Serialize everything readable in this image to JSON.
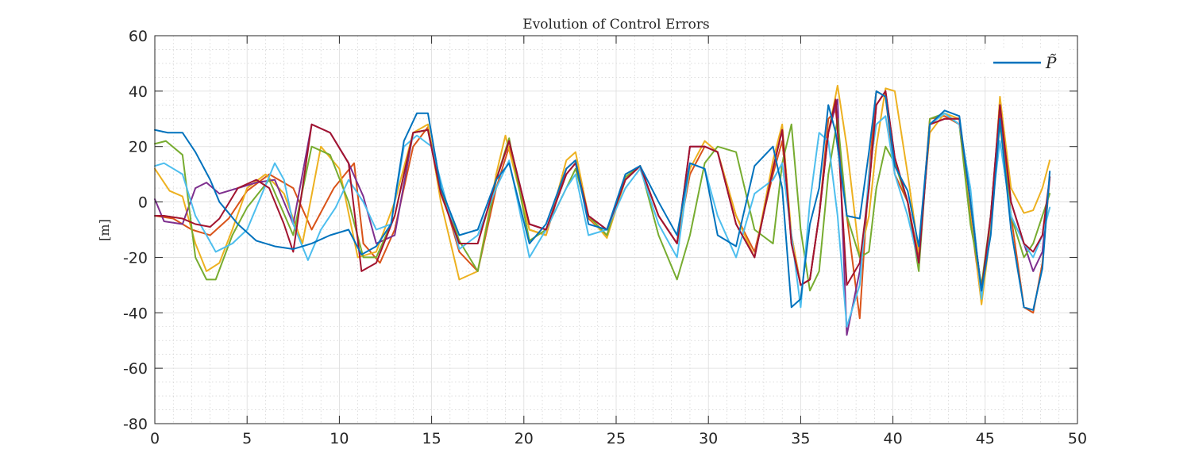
{
  "chart_data": {
    "type": "line",
    "title": "Evolution of Control Errors",
    "xlabel": "",
    "ylabel": "[m]",
    "xlim": [
      0,
      50
    ],
    "ylim": [
      -80,
      60
    ],
    "xticks": [
      "0",
      "5",
      "10",
      "15",
      "20",
      "25",
      "30",
      "35",
      "40",
      "45",
      "50"
    ],
    "yticks": [
      "60",
      "40",
      "20",
      "0",
      "-20",
      "-40",
      "-60",
      "-80"
    ],
    "grid": true,
    "minor_grid": true,
    "legend": {
      "placement": "top-right",
      "entries": [
        {
          "label": "P̃",
          "color": "#0072BD"
        }
      ]
    },
    "series": [
      {
        "color": "#0072BD",
        "x": [
          0,
          0.7,
          1.5,
          2.2,
          3,
          3.5,
          4.5,
          5.5,
          6.5,
          7.5,
          8.5,
          9.5,
          10.5,
          11.2,
          12,
          12.8,
          13.5,
          14.2,
          14.8,
          15.5,
          16.5,
          17.5,
          18.5,
          19.2,
          20.3,
          21.2,
          22.3,
          22.8,
          23.5,
          24.5,
          25.5,
          26.3,
          27.3,
          28.3,
          29,
          29.8,
          30.5,
          31.5,
          32.5,
          33.5,
          34,
          34.5,
          35,
          35.5,
          36,
          36.5,
          36.9,
          37.5,
          38.2,
          38.7,
          39.1,
          39.6,
          40.1,
          40.8,
          41.4,
          42,
          42.8,
          43.6,
          44.2,
          44.8,
          45.3,
          45.8,
          46.4,
          47.1,
          47.6,
          48.1,
          48.5
        ],
        "y": [
          26,
          25,
          25,
          18,
          8,
          0,
          -8,
          -14,
          -16,
          -17,
          -15,
          -12,
          -10,
          -19,
          -16,
          -8,
          22,
          32,
          32,
          5,
          -12,
          -10,
          8,
          14,
          -15,
          -8,
          12,
          15,
          -8,
          -10,
          10,
          13,
          0,
          -12,
          14,
          12,
          -12,
          -16,
          13,
          20,
          5,
          -38,
          -35,
          -8,
          5,
          35,
          25,
          -5,
          -6,
          18,
          40,
          38,
          13,
          4,
          -16,
          28,
          33,
          31,
          0,
          -32,
          -12,
          30,
          -10,
          -38,
          -39,
          -24,
          11
        ]
      },
      {
        "color": "#D95319",
        "x": [
          0,
          1,
          2,
          3,
          4,
          5,
          6.2,
          7.5,
          8.5,
          9.7,
          10.8,
          11.3,
          12.2,
          13,
          14,
          14.8,
          15.5,
          16.5,
          17.5,
          18.5,
          19.2,
          20.3,
          21.2,
          22.3,
          22.8,
          23.5,
          24.5,
          25.5,
          26.3,
          27.3,
          28.3,
          29,
          29.8,
          30.5,
          31.5,
          32.5,
          33.5,
          34,
          34.5,
          35,
          35.5,
          36,
          36.5,
          36.9,
          37.5,
          38.2,
          38.7,
          39.1,
          39.6,
          40.1,
          40.8,
          41.4,
          42,
          42.8,
          43.6,
          44.2,
          44.8,
          45.3,
          45.8,
          46.4,
          47.1,
          47.6,
          48.1,
          48.5
        ],
        "y": [
          -5,
          -6,
          -10,
          -12,
          -6,
          4,
          10,
          5,
          -10,
          5,
          14,
          -15,
          -22,
          -10,
          20,
          27,
          5,
          -18,
          -25,
          5,
          20,
          -10,
          -12,
          12,
          15,
          -6,
          -12,
          8,
          13,
          -5,
          -15,
          10,
          20,
          18,
          -5,
          -18,
          10,
          22,
          -12,
          -30,
          -28,
          -5,
          30,
          33,
          -5,
          -42,
          10,
          40,
          38,
          10,
          0,
          -20,
          30,
          31,
          28,
          -5,
          -36,
          -5,
          32,
          -5,
          -38,
          -40,
          -22,
          9
        ]
      },
      {
        "color": "#EDB120",
        "x": [
          0,
          0.8,
          1.5,
          2.2,
          2.8,
          3.5,
          4.2,
          5,
          6,
          7,
          8,
          9,
          10,
          11,
          12,
          13,
          14,
          14.8,
          15.5,
          16.5,
          17.5,
          18.5,
          19,
          20.3,
          21.2,
          22.3,
          22.8,
          23.5,
          24.5,
          25.5,
          26.3,
          27.3,
          28.3,
          29,
          29.8,
          30.5,
          31.5,
          32.5,
          33.5,
          34,
          34.5,
          35,
          35.5,
          36,
          36.5,
          37,
          37.5,
          38.2,
          38.7,
          39.1,
          39.6,
          40.1,
          40.8,
          41.4,
          42,
          42.8,
          43.6,
          44.2,
          44.8,
          45.3,
          45.8,
          46.4,
          47.1,
          47.6,
          48.1,
          48.5
        ],
        "y": [
          12,
          4,
          2,
          -15,
          -25,
          -22,
          -10,
          5,
          10,
          3,
          -15,
          20,
          12,
          -20,
          -18,
          0,
          25,
          28,
          0,
          -28,
          -25,
          10,
          24,
          -10,
          -12,
          15,
          18,
          -5,
          -13,
          8,
          13,
          -5,
          -15,
          12,
          22,
          18,
          -5,
          -20,
          15,
          28,
          -12,
          -30,
          -28,
          -5,
          25,
          42,
          20,
          -20,
          -5,
          20,
          41,
          40,
          10,
          -18,
          25,
          32,
          30,
          -2,
          -37,
          -10,
          38,
          5,
          -4,
          -3,
          5,
          15
        ]
      },
      {
        "color": "#7E2F8E",
        "x": [
          0,
          0.5,
          1.5,
          2.2,
          2.8,
          3.5,
          4.5,
          5.5,
          6.5,
          7.5,
          8.5,
          9.5,
          10.5,
          11.3,
          12,
          13,
          14,
          14.8,
          15.5,
          16.5,
          17.5,
          18.5,
          19.2,
          20.3,
          21.2,
          22.3,
          22.8,
          23.5,
          24.5,
          25.5,
          26.3,
          27.3,
          28.3,
          29,
          29.8,
          30.5,
          31.5,
          32.5,
          33.5,
          34,
          34.5,
          35,
          35.5,
          36,
          36.5,
          37,
          37.5,
          38.2,
          38.7,
          39.1,
          39.6,
          40.1,
          40.8,
          41.4,
          42,
          42.8,
          43.6,
          44.2,
          44.8,
          45.3,
          45.8,
          46.4,
          47.1,
          47.6,
          48.1,
          48.5
        ],
        "y": [
          1,
          -7,
          -8,
          5,
          7,
          3,
          5,
          7,
          8,
          -8,
          28,
          25,
          14,
          2,
          -15,
          -12,
          25,
          26,
          3,
          -15,
          -15,
          8,
          22,
          -8,
          -10,
          10,
          14,
          -5,
          -10,
          8,
          13,
          -5,
          -15,
          20,
          20,
          18,
          -8,
          -20,
          12,
          26,
          -15,
          -30,
          -28,
          -5,
          25,
          37,
          -48,
          -25,
          5,
          35,
          40,
          16,
          0,
          -22,
          28,
          30,
          30,
          0,
          -32,
          -5,
          35,
          0,
          -15,
          -25,
          -18,
          9
        ]
      },
      {
        "color": "#77AC30",
        "x": [
          0,
          0.6,
          1.5,
          2.2,
          2.8,
          3.3,
          4.2,
          5,
          6.2,
          7.5,
          8.5,
          9.5,
          10.5,
          11.3,
          12,
          13,
          14,
          14.8,
          15.5,
          16.5,
          17.5,
          18.5,
          19.2,
          20.3,
          21.2,
          22.3,
          22.8,
          23.5,
          24.5,
          25.5,
          26.3,
          27.3,
          28.3,
          29,
          29.8,
          30.5,
          31.5,
          32.5,
          33.5,
          34,
          34.5,
          35,
          35.5,
          36,
          36.5,
          37,
          37.5,
          38.2,
          38.7,
          39.1,
          39.6,
          40.1,
          40.8,
          41.4,
          42,
          42.8,
          43.6,
          44.2,
          44.8,
          45.3,
          45.8,
          46.4,
          47.1,
          47.6,
          48.1,
          48.5
        ],
        "y": [
          21,
          22,
          17,
          -20,
          -28,
          -28,
          -12,
          -2,
          8,
          -12,
          20,
          17,
          0,
          -20,
          -20,
          -5,
          25,
          26,
          5,
          -14,
          -25,
          8,
          23,
          -14,
          -10,
          5,
          12,
          -5,
          -12,
          9,
          13,
          -12,
          -28,
          -12,
          14,
          20,
          18,
          -10,
          -15,
          14,
          28,
          -10,
          -32,
          -25,
          10,
          30,
          -5,
          -20,
          -18,
          5,
          20,
          14,
          0,
          -25,
          30,
          32,
          28,
          -8,
          -30,
          -5,
          28,
          -5,
          -20,
          -15,
          -5,
          3
        ]
      },
      {
        "color": "#4DBEEE",
        "x": [
          0,
          0.5,
          1.5,
          2.2,
          2.8,
          3.3,
          4.2,
          5,
          6.5,
          7,
          7.5,
          8.3,
          9,
          9.8,
          10.5,
          11.3,
          12,
          12.8,
          13.5,
          14.2,
          15,
          15.8,
          16.5,
          17.5,
          18.5,
          19.2,
          20.3,
          21.2,
          22.3,
          22.8,
          23.5,
          24.5,
          25.5,
          26.3,
          27.3,
          28.3,
          29,
          29.8,
          30.5,
          31.5,
          32.5,
          33.5,
          34,
          34.5,
          35,
          35.5,
          36,
          36.5,
          37,
          37.5,
          38.2,
          38.7,
          39.1,
          39.6,
          40.1,
          40.8,
          41.4,
          42,
          42.8,
          43.6,
          44.2,
          44.8,
          45.3,
          45.8,
          46.4,
          47.1,
          47.6,
          48.1,
          48.5
        ],
        "y": [
          13,
          14,
          10,
          -5,
          -12,
          -18,
          -15,
          -10,
          14,
          8,
          -8,
          -21,
          -10,
          -2,
          8,
          0,
          -10,
          -8,
          20,
          24,
          20,
          0,
          -17,
          -12,
          5,
          15,
          -20,
          -10,
          5,
          10,
          -12,
          -10,
          5,
          12,
          -8,
          -20,
          14,
          12,
          -5,
          -20,
          3,
          8,
          14,
          -12,
          -38,
          0,
          25,
          22,
          -5,
          -45,
          -30,
          10,
          28,
          31,
          10,
          -5,
          -22,
          28,
          32,
          28,
          5,
          -35,
          -5,
          22,
          -5,
          -15,
          -20,
          -12,
          -2
        ]
      },
      {
        "color": "#A2142F",
        "x": [
          0,
          0.5,
          1.5,
          2.2,
          3,
          3.5,
          4.5,
          5.5,
          6.2,
          7,
          7.5,
          8.5,
          9.5,
          10.5,
          11.2,
          12,
          13,
          14,
          14.8,
          15.5,
          16.5,
          17.5,
          18.5,
          19.2,
          20.3,
          21.2,
          22.3,
          22.8,
          23.5,
          24.5,
          25.5,
          26.3,
          27.3,
          28.3,
          29,
          29.8,
          30.5,
          31.5,
          32.5,
          33.5,
          34,
          34.5,
          35,
          35.5,
          36,
          36.5,
          36.9,
          37.5,
          38.2,
          38.7,
          39.1,
          39.6,
          40.1,
          40.8,
          41.4,
          42,
          42.8,
          43.6,
          44.2,
          44.8,
          45.3,
          45.8,
          46.4,
          47.1,
          47.6,
          48.1,
          48.5
        ],
        "y": [
          -5,
          -5,
          -6,
          -8,
          -9,
          -6,
          5,
          8,
          5,
          -8,
          -18,
          28,
          25,
          14,
          -25,
          -22,
          -5,
          25,
          26,
          3,
          -15,
          -15,
          8,
          22,
          -8,
          -10,
          10,
          14,
          -5,
          -10,
          8,
          13,
          -5,
          -15,
          20,
          20,
          18,
          -8,
          -20,
          12,
          26,
          -15,
          -30,
          -28,
          -5,
          25,
          37,
          -30,
          -22,
          5,
          35,
          40,
          16,
          0,
          -22,
          28,
          30,
          30,
          0,
          -32,
          -5,
          35,
          0,
          -15,
          -18,
          -12,
          9
        ]
      }
    ]
  }
}
